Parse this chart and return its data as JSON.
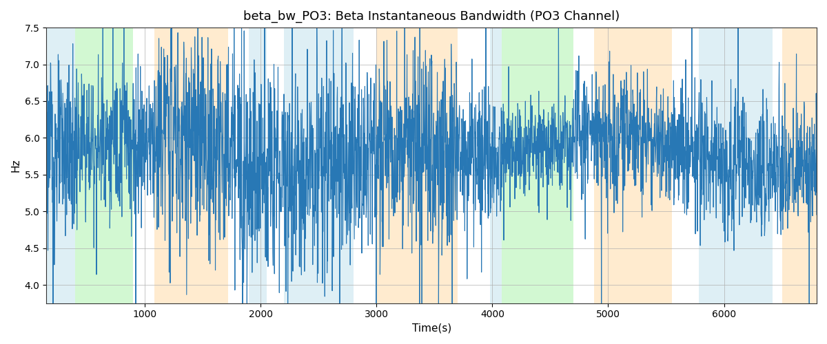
{
  "title": "beta_bw_PO3: Beta Instantaneous Bandwidth (PO3 Channel)",
  "xlabel": "Time(s)",
  "ylabel": "Hz",
  "ylim": [
    3.75,
    7.5
  ],
  "xlim": [
    150,
    6800
  ],
  "line_color": "#2878b5",
  "line_width": 0.8,
  "background_color": "#ffffff",
  "grid_color": "#b0b0b0",
  "figsize": [
    12,
    5
  ],
  "dpi": 100,
  "bands": [
    {
      "start": 150,
      "end": 400,
      "color": "#add8e6",
      "alpha": 0.4
    },
    {
      "start": 400,
      "end": 900,
      "color": "#90ee90",
      "alpha": 0.4
    },
    {
      "start": 1080,
      "end": 1720,
      "color": "#ffd9a0",
      "alpha": 0.5
    },
    {
      "start": 1900,
      "end": 2050,
      "color": "#add8e6",
      "alpha": 0.4
    },
    {
      "start": 2200,
      "end": 2800,
      "color": "#add8e6",
      "alpha": 0.4
    },
    {
      "start": 3000,
      "end": 3700,
      "color": "#ffd9a0",
      "alpha": 0.5
    },
    {
      "start": 3980,
      "end": 4080,
      "color": "#add8e6",
      "alpha": 0.4
    },
    {
      "start": 4080,
      "end": 4700,
      "color": "#90ee90",
      "alpha": 0.4
    },
    {
      "start": 4880,
      "end": 5550,
      "color": "#ffd9a0",
      "alpha": 0.5
    },
    {
      "start": 5780,
      "end": 6420,
      "color": "#add8e6",
      "alpha": 0.4
    },
    {
      "start": 6500,
      "end": 6800,
      "color": "#ffd9a0",
      "alpha": 0.5
    }
  ],
  "xticks": [
    1000,
    2000,
    3000,
    4000,
    5000,
    6000
  ],
  "yticks": [
    4.0,
    4.5,
    5.0,
    5.5,
    6.0,
    6.5,
    7.0,
    7.5
  ]
}
